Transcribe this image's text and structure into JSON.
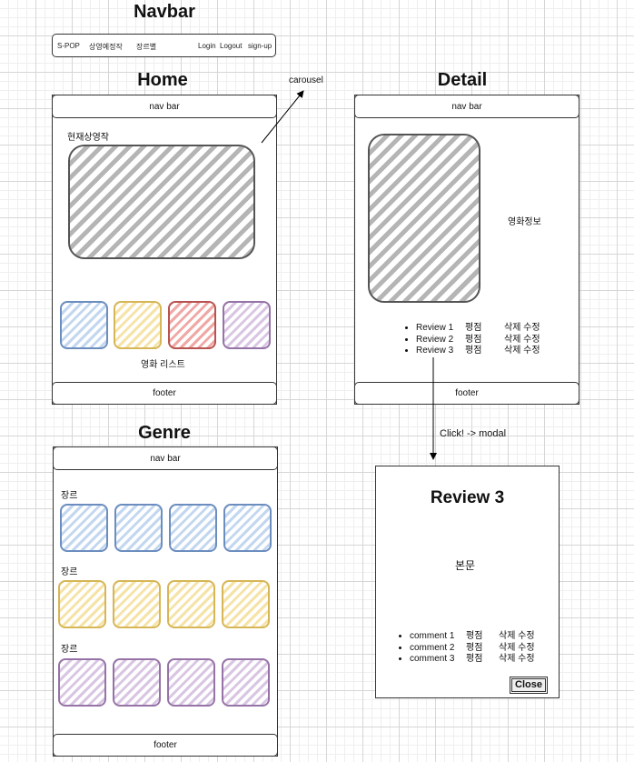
{
  "navbar_section": {
    "title": "Navbar",
    "items_left": [
      "S-POP",
      "상영예정작",
      "장르별"
    ],
    "items_right": [
      "Login",
      "Logout",
      "sign-up"
    ]
  },
  "home": {
    "title": "Home",
    "navbar": "nav bar",
    "current_label": "현재상영작",
    "list_label": "영화 리스트",
    "footer": "footer"
  },
  "carousel_label": "carousel",
  "detail": {
    "title": "Detail",
    "navbar": "nav bar",
    "info_label": "영화정보",
    "reviews": [
      {
        "name": "Review 1",
        "rating": "평점",
        "actions": "삭제 수정"
      },
      {
        "name": "Review 2",
        "rating": "평점",
        "actions": "삭제 수정"
      },
      {
        "name": "Review 3",
        "rating": "평점",
        "actions": "삭제 수정"
      }
    ],
    "footer": "footer"
  },
  "click_label": "Click! -> modal",
  "genre": {
    "title": "Genre",
    "navbar": "nav bar",
    "genre_labels": [
      "장르",
      "장르",
      "장르"
    ],
    "footer": "footer"
  },
  "modal": {
    "title": "Review 3",
    "body": "본문",
    "comments": [
      {
        "name": "comment 1",
        "rating": "평점",
        "actions": "삭제 수정"
      },
      {
        "name": "comment 2",
        "rating": "평점",
        "actions": "삭제 수정"
      },
      {
        "name": "comment 3",
        "rating": "평점",
        "actions": "삭제 수정"
      }
    ],
    "close": "Close"
  },
  "colors": {
    "blue": "#6c8ebf",
    "yellow": "#d6b656",
    "red": "#b85450",
    "purple": "#9673a6",
    "gray": "#555555"
  }
}
